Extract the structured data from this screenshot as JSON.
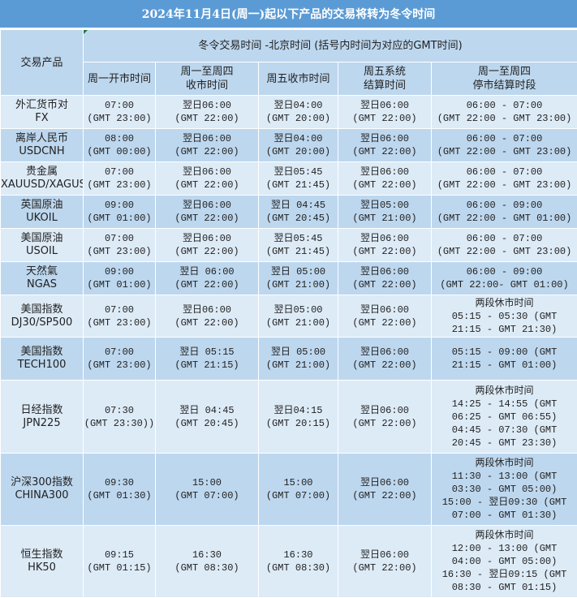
{
  "title": "2024年11月4日(周一)起以下产品的交易将转为冬令时间",
  "header": {
    "product": "交易产品",
    "group": "冬令交易时间 -北京时间 (括号内时间为对应的GMT时间)",
    "columns": [
      "周一开市时间",
      [
        "周一至周四",
        "收市时间"
      ],
      "周五收市时间",
      [
        "周五系统",
        "结算时间"
      ],
      [
        "周一至周四",
        "停市结算时段"
      ]
    ]
  },
  "rows": [
    {
      "name": [
        "外汇货币对",
        "FX"
      ],
      "open": [
        "07:00",
        "(GMT 23:00)"
      ],
      "close": [
        "翌日06:00",
        "(GMT 22:00)"
      ],
      "fri": [
        "翌日04:00",
        "(GMT 20:00)"
      ],
      "settle": [
        "翌日06:00",
        "(GMT 22:00)"
      ],
      "halt": [
        "06:00 - 07:00",
        "(GMT 22:00 - GMT 23:00)"
      ]
    },
    {
      "name": [
        "离岸人民币",
        "USDCNH"
      ],
      "open": [
        "08:00",
        "(GMT 00:00)"
      ],
      "close": [
        "翌日06:00",
        "(GMT 22:00)"
      ],
      "fri": [
        "翌日04:00",
        "(GMT 20:00)"
      ],
      "settle": [
        "翌日06:00",
        "(GMT 22:00)"
      ],
      "halt": [
        "06:00 - 07:00",
        "(GMT 22:00 - GMT 23:00)"
      ]
    },
    {
      "name": [
        "贵金属",
        "XAUUSD/XAGUSD"
      ],
      "open": [
        "07:00",
        "(GMT 23:00)"
      ],
      "close": [
        "翌日06:00",
        "(GMT 22:00)"
      ],
      "fri": [
        "翌日05:45",
        "(GMT 21:45)"
      ],
      "settle": [
        "翌日06:00",
        "(GMT 22:00)"
      ],
      "halt": [
        "06:00 - 07:00",
        "(GMT 22:00 - GMT 23:00)"
      ]
    },
    {
      "name": [
        "英国原油",
        "UKOIL"
      ],
      "open": [
        "09:00",
        "(GMT 01:00)"
      ],
      "close": [
        "翌日06:00",
        "(GMT 22:00)"
      ],
      "fri": [
        "翌日 04:45",
        "(GMT 20:45)"
      ],
      "settle": [
        "翌日05:00",
        "(GMT 21:00)"
      ],
      "halt": [
        "06:00 - 09:00",
        "(GMT 22:00 - GMT 01:00)"
      ]
    },
    {
      "name": [
        "美国原油",
        "USOIL"
      ],
      "open": [
        "07:00",
        "(GMT 23:00)"
      ],
      "close": [
        "翌日06:00",
        "(GMT 22:00)"
      ],
      "fri": [
        "翌日05:45",
        "(GMT 21:45)"
      ],
      "settle": [
        "翌日06:00",
        "(GMT 22:00)"
      ],
      "halt": [
        "06:00 - 07:00",
        "(GMT 22:00 - GMT 23:00)"
      ]
    },
    {
      "name": [
        "天然氣",
        "NGAS"
      ],
      "open": [
        "09:00",
        "(GMT 01:00)"
      ],
      "close": [
        "翌日 06:00",
        "(GMT 22:00)"
      ],
      "fri": [
        "翌日 05:00",
        "(GMT 21:00)"
      ],
      "settle": [
        "翌日06:00",
        "(GMT 22:00)"
      ],
      "halt": [
        "06:00 - 09:00",
        "(GMT 22:00- GMT 01:00)"
      ]
    },
    {
      "name": [
        "美国指数",
        "DJ30/SP500"
      ],
      "open": [
        "07:00",
        "(GMT 23:00)"
      ],
      "close": [
        "翌日06:00",
        "(GMT 22:00)"
      ],
      "fri": [
        "翌日05:00",
        "(GMT 21:00)"
      ],
      "settle": [
        "翌日06:00",
        "(GMT 22:00)"
      ],
      "halt": [
        "两段休市时间",
        "05:15 - 05:30 (GMT",
        "21:15 - GMT 21:30)"
      ]
    },
    {
      "name": [
        "美国指数",
        "TECH100"
      ],
      "open": [
        "07:00",
        "(GMT 23:00)"
      ],
      "close": [
        "翌日 05:15",
        "(GMT 21:15)"
      ],
      "fri": [
        "翌日 05:00",
        "(GMT 21:00)"
      ],
      "settle": [
        "翌日06:00",
        "(GMT 22:00)"
      ],
      "halt": [
        "05:15 - 09:00 (GMT",
        "21:15 - GMT 01:00)"
      ]
    },
    {
      "name": [
        "日经指数",
        "JPN225"
      ],
      "open": [
        "07:30",
        "(GMT 23:30))"
      ],
      "close": [
        "翌日 04:45",
        "(GMT 20:45)"
      ],
      "fri": [
        "翌日04:15",
        "(GMT 20:15)"
      ],
      "settle": [
        "翌日06:00",
        "(GMT 22:00)"
      ],
      "halt": [
        "两段休市时间",
        "14:25 - 14:55 (GMT",
        "06:25 - GMT 06:55)",
        "04:45 - 07:30 (GMT",
        "20:45 - GMT 23:30)"
      ]
    },
    {
      "name": [
        "沪深300指数",
        "CHINA300"
      ],
      "open": [
        "09:30",
        "(GMT 01:30)"
      ],
      "close": [
        "15:00",
        "(GMT 07:00)"
      ],
      "fri": [
        "15:00",
        "(GMT 07:00)"
      ],
      "settle": [
        "翌日06:00",
        "(GMT 22:00)"
      ],
      "halt": [
        "两段休市时间",
        "11:30 - 13:00 (GMT",
        "03:30 - GMT 05:00)",
        "15:00 - 翌日09:30 (GMT",
        "07:00 - GMT 01:30)"
      ]
    },
    {
      "name": [
        "恒生指数",
        "HK50"
      ],
      "open": [
        "09:15",
        "(GMT 01:15)"
      ],
      "close": [
        "16:30",
        "(GMT 08:30)"
      ],
      "fri": [
        "16:30",
        "(GMT 08:30)"
      ],
      "settle": [
        "翌日06:00",
        "(GMT 22:00)"
      ],
      "halt": [
        "两段休市时间",
        "12:00 - 13:00 (GMT",
        "04:00 - GMT 05:00)",
        "16:30 - 翌日09:15 (GMT",
        "08:30 - GMT 01:15)"
      ]
    }
  ],
  "colors": {
    "title_bg": "#5b9bd5",
    "header_bg": "#bdd7ee",
    "row_light": "#ddebf7",
    "row_dark": "#bdd7ee"
  }
}
